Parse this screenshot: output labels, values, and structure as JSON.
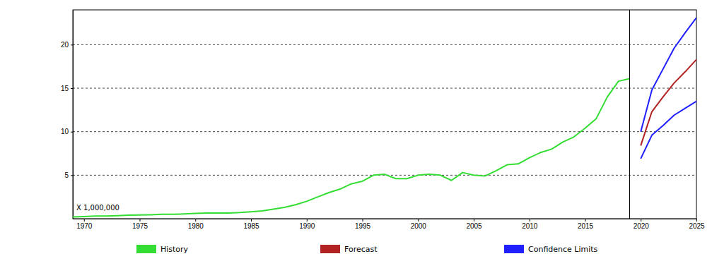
{
  "chart_data": {
    "type": "line",
    "annotations": [
      "X 1,000,000"
    ],
    "x": [
      1969,
      1970,
      1971,
      1972,
      1973,
      1974,
      1975,
      1976,
      1977,
      1978,
      1979,
      1980,
      1981,
      1982,
      1983,
      1984,
      1985,
      1986,
      1987,
      1988,
      1989,
      1990,
      1991,
      1992,
      1993,
      1994,
      1995,
      1996,
      1997,
      1998,
      1999,
      2000,
      2001,
      2002,
      2003,
      2004,
      2005,
      2006,
      2007,
      2008,
      2009,
      2010,
      2011,
      2012,
      2013,
      2014,
      2015,
      2016,
      2017,
      2018,
      2019,
      2020,
      2021,
      2022,
      2023,
      2024,
      2025
    ],
    "series": [
      {
        "name": "History",
        "color": "#33dd33",
        "values": [
          0.2,
          0.25,
          0.3,
          0.3,
          0.35,
          0.4,
          0.42,
          0.45,
          0.5,
          0.5,
          0.55,
          0.6,
          0.65,
          0.65,
          0.65,
          0.7,
          0.8,
          0.9,
          1.1,
          1.3,
          1.6,
          2.0,
          2.5,
          3.0,
          3.4,
          4.0,
          4.3,
          5.0,
          5.1,
          4.6,
          4.6,
          5.0,
          5.1,
          5.0,
          4.4,
          5.3,
          5.0,
          4.9,
          5.5,
          6.2,
          6.3,
          7.0,
          7.6,
          8.0,
          8.8,
          9.4,
          10.4,
          11.5,
          14.0,
          15.8,
          16.1,
          null,
          null,
          null,
          null,
          null,
          null
        ]
      },
      {
        "name": "Forecast",
        "color": "#b22222",
        "values": [
          null,
          null,
          null,
          null,
          null,
          null,
          null,
          null,
          null,
          null,
          null,
          null,
          null,
          null,
          null,
          null,
          null,
          null,
          null,
          null,
          null,
          null,
          null,
          null,
          null,
          null,
          null,
          null,
          null,
          null,
          null,
          null,
          null,
          null,
          null,
          null,
          null,
          null,
          null,
          null,
          null,
          null,
          null,
          null,
          null,
          null,
          null,
          null,
          null,
          null,
          null,
          8.4,
          12.3,
          14.0,
          15.6,
          16.9,
          18.3
        ]
      },
      {
        "name": "Confidence Limits",
        "color": "#1f1fff",
        "values": [
          null,
          null,
          null,
          null,
          null,
          null,
          null,
          null,
          null,
          null,
          null,
          null,
          null,
          null,
          null,
          null,
          null,
          null,
          null,
          null,
          null,
          null,
          null,
          null,
          null,
          null,
          null,
          null,
          null,
          null,
          null,
          null,
          null,
          null,
          null,
          null,
          null,
          null,
          null,
          null,
          null,
          null,
          null,
          null,
          null,
          null,
          null,
          null,
          null,
          null,
          null,
          10.0,
          14.8,
          17.2,
          19.6,
          21.4,
          23.1
        ]
      },
      {
        "color": "#1f1fff",
        "values": [
          null,
          null,
          null,
          null,
          null,
          null,
          null,
          null,
          null,
          null,
          null,
          null,
          null,
          null,
          null,
          null,
          null,
          null,
          null,
          null,
          null,
          null,
          null,
          null,
          null,
          null,
          null,
          null,
          null,
          null,
          null,
          null,
          null,
          null,
          null,
          null,
          null,
          null,
          null,
          null,
          null,
          null,
          null,
          null,
          null,
          null,
          null,
          null,
          null,
          null,
          null,
          6.9,
          9.6,
          10.7,
          11.9,
          12.7,
          13.5
        ]
      }
    ],
    "xlim": [
      1969,
      2025
    ],
    "xticks": [
      1970,
      1975,
      1980,
      1985,
      1990,
      1995,
      2000,
      2005,
      2010,
      2015,
      2020,
      2025
    ],
    "ylim": [
      0,
      24
    ],
    "yticks": [
      5,
      10,
      15,
      20
    ],
    "grid": true,
    "legend": "bottom"
  }
}
